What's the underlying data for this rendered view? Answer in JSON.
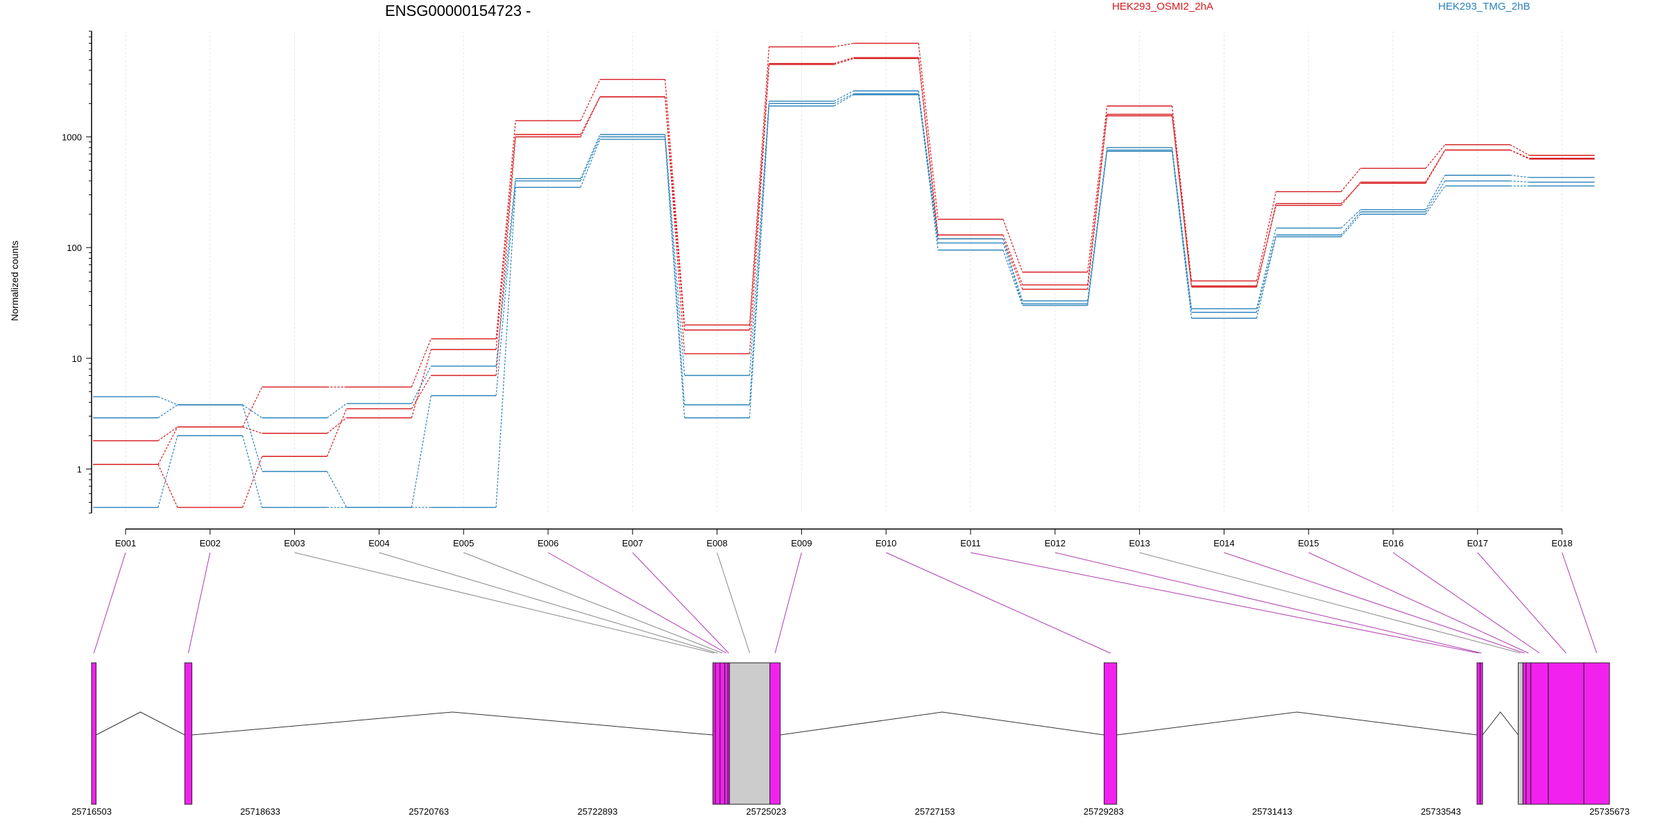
{
  "title": "ENSG00000154723 -",
  "ylabel": "Normalized counts",
  "legend": [
    {
      "label": "HEK293_OSMI2_2hA",
      "color": "#d7191c"
    },
    {
      "label": "HEK293_TMG_2hB",
      "color": "#2b83ba"
    }
  ],
  "chart_data": {
    "type": "line",
    "title": "ENSG00000154723 -",
    "ylabel": "Normalized counts",
    "yscale": "log",
    "ylim": [
      0.4,
      9000
    ],
    "ytick_labels": [
      "1",
      "10",
      "100",
      "1000"
    ],
    "ytick_values": [
      1,
      10,
      100,
      1000
    ],
    "categories": [
      "E001",
      "E002",
      "E003",
      "E004",
      "E005",
      "E006",
      "E007",
      "E008",
      "E009",
      "E010",
      "E011",
      "E012",
      "E013",
      "E014",
      "E015",
      "E016",
      "E017",
      "E018"
    ],
    "series": [
      {
        "group": "HEK293_OSMI2_2hA",
        "color": "#d7191c",
        "values": [
          1.8,
          2.4,
          5.5,
          5.5,
          15,
          1400,
          3300,
          20,
          6500,
          7000,
          180,
          60,
          1900,
          50,
          320,
          520,
          850,
          680
        ]
      },
      {
        "group": "HEK293_OSMI2_2hA",
        "color": "#d7191c",
        "values": [
          1.1,
          2.4,
          2.1,
          2.9,
          12,
          1050,
          2300,
          18,
          4600,
          5200,
          130,
          46,
          1600,
          44,
          250,
          380,
          760,
          640
        ]
      },
      {
        "group": "HEK293_OSMI2_2hA",
        "color": "#d7191c",
        "values": [
          1.1,
          0.45,
          1.3,
          3.5,
          7,
          1000,
          2300,
          11,
          4500,
          5100,
          120,
          42,
          1550,
          45,
          240,
          390,
          760,
          630
        ]
      },
      {
        "group": "HEK293_TMG_2hB",
        "color": "#2b83ba",
        "values": [
          4.5,
          3.8,
          2.9,
          3.9,
          8.5,
          420,
          1050,
          7,
          2100,
          2600,
          120,
          33,
          800,
          28,
          150,
          220,
          450,
          430
        ]
      },
      {
        "group": "HEK293_TMG_2hB",
        "color": "#2b83ba",
        "values": [
          2.9,
          3.8,
          0.95,
          0.45,
          4.6,
          400,
          1000,
          3.8,
          2000,
          2450,
          110,
          31,
          760,
          26,
          130,
          210,
          400,
          390
        ]
      },
      {
        "group": "HEK293_TMG_2hB",
        "color": "#2b83ba",
        "values": [
          0.45,
          2.0,
          0.45,
          0.45,
          0.45,
          350,
          950,
          2.9,
          1900,
          2400,
          95,
          30,
          740,
          23,
          125,
          200,
          360,
          360
        ]
      }
    ],
    "gene_model": {
      "genomic_ticks": [
        "25716503",
        "25718633",
        "25720763",
        "25722893",
        "25725023",
        "25727153",
        "25729283",
        "25731413",
        "25733543",
        "25735673"
      ],
      "exons": [
        {
          "id": "E001",
          "start": 25716503,
          "end": 25716560,
          "color": "#f122ee"
        },
        {
          "id": "E002",
          "start": 25717680,
          "end": 25717770,
          "color": "#f122ee"
        },
        {
          "id": "E003",
          "start": 25724350,
          "end": 25724380,
          "color": "#f122ee"
        },
        {
          "id": "E004",
          "start": 25724380,
          "end": 25724440,
          "color": "#f122ee"
        },
        {
          "id": "E005",
          "start": 25724440,
          "end": 25724500,
          "color": "#f122ee"
        },
        {
          "id": "E006",
          "start": 25724500,
          "end": 25724540,
          "color": "#f122ee"
        },
        {
          "id": "E007",
          "start": 25724540,
          "end": 25724560,
          "color": "#f122ee"
        },
        {
          "id": "E008",
          "start": 25724560,
          "end": 25725070,
          "color": "#cccccc"
        },
        {
          "id": "E009",
          "start": 25725070,
          "end": 25725200,
          "color": "#f122ee"
        },
        {
          "id": "E010",
          "start": 25729290,
          "end": 25729450,
          "color": "#f122ee"
        },
        {
          "id": "E011",
          "start": 25734000,
          "end": 25734040,
          "color": "#f122ee"
        },
        {
          "id": "E012",
          "start": 25734040,
          "end": 25734070,
          "color": "#f122ee"
        },
        {
          "id": "E013",
          "start": 25734520,
          "end": 25734580,
          "color": "#cccccc"
        },
        {
          "id": "E014",
          "start": 25734580,
          "end": 25734620,
          "color": "#f122ee"
        },
        {
          "id": "E015",
          "start": 25734620,
          "end": 25734680,
          "color": "#f122ee"
        },
        {
          "id": "E016",
          "start": 25734680,
          "end": 25734900,
          "color": "#f122ee"
        },
        {
          "id": "E017",
          "start": 25734900,
          "end": 25735350,
          "color": "#f122ee"
        },
        {
          "id": "E018",
          "start": 25735350,
          "end": 25735673,
          "color": "#f122ee"
        }
      ],
      "connector_colors": {
        "significant": "#b03ab0",
        "not_significant": "#888888"
      },
      "significant": [
        "E001",
        "E002",
        "E006",
        "E007",
        "E009",
        "E010",
        "E011",
        "E012",
        "E014",
        "E015",
        "E016",
        "E017",
        "E018"
      ]
    }
  }
}
